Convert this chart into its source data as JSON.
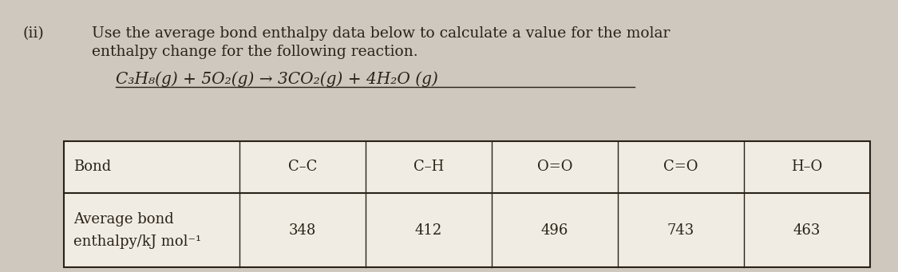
{
  "background_color": "#cec8be",
  "label_ii": "(ii)",
  "instruction_line1": "Use the average bond enthalpy data below to calculate a value for the molar",
  "instruction_line2": "enthalpy change for the following reaction.",
  "reaction": "C₃H₈(g) + 5O₂(g) → 3CO₂(g) + 4H₂O (g)",
  "table_headers": [
    "Bond",
    "C–C",
    "C–H",
    "O=O",
    "C=O",
    "H–O"
  ],
  "row1_label": "Bond",
  "row2_label_line1": "Average bond",
  "row2_label_line2": "enthalpy/kJ mol⁻¹",
  "values": [
    "348",
    "412",
    "496",
    "743",
    "463"
  ],
  "font_size_text": 13.5,
  "font_size_reaction": 14.5,
  "font_size_table": 13,
  "text_color": "#2a2218"
}
